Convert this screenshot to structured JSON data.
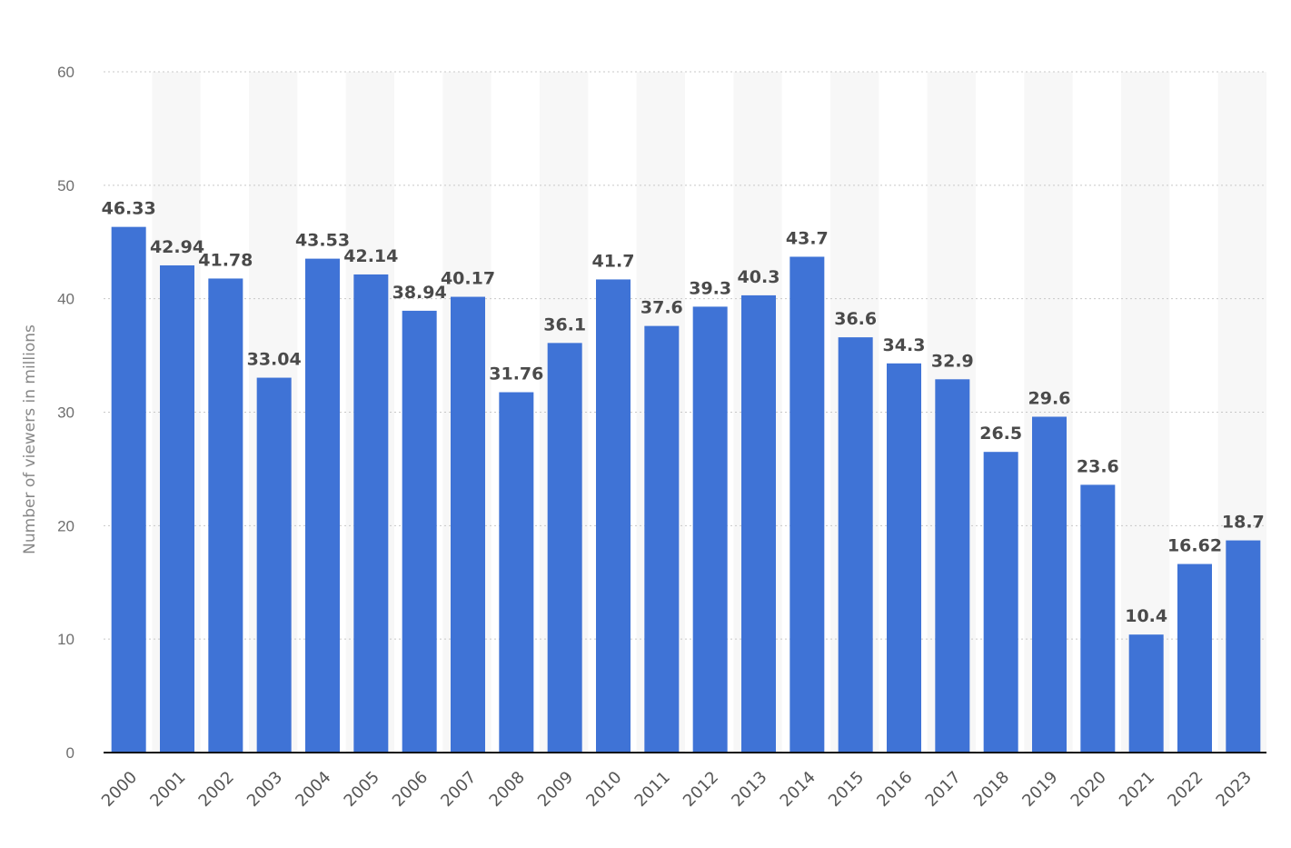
{
  "chart_data": {
    "type": "bar",
    "title": "",
    "xlabel": "",
    "ylabel": "Number of viewers in millions",
    "ylim": [
      0,
      60
    ],
    "yticks": [
      0,
      10,
      20,
      30,
      40,
      50,
      60
    ],
    "grid": true,
    "legend": "none",
    "bar_color": "#3f73d6",
    "categories": [
      "2000",
      "2001",
      "2002",
      "2003",
      "2004",
      "2005",
      "2006",
      "2007",
      "2008",
      "2009",
      "2010",
      "2011",
      "2012",
      "2013",
      "2014",
      "2015",
      "2016",
      "2017",
      "2018",
      "2019",
      "2020",
      "2021",
      "2022",
      "2023"
    ],
    "values": [
      46.33,
      42.94,
      41.78,
      33.04,
      43.53,
      42.14,
      38.94,
      40.17,
      31.76,
      36.1,
      41.7,
      37.6,
      39.3,
      40.3,
      43.7,
      36.6,
      34.3,
      32.9,
      26.5,
      29.6,
      23.6,
      10.4,
      16.62,
      18.7
    ],
    "data_labels": [
      "46.33",
      "42.94",
      "41.78",
      "33.04",
      "43.53",
      "42.14",
      "38.94",
      "40.17",
      "31.76",
      "36.1",
      "41.7",
      "37.6",
      "39.3",
      "40.3",
      "43.7",
      "36.6",
      "34.3",
      "32.9",
      "26.5",
      "29.6",
      "23.6",
      "10.4",
      "16.62",
      "18.7"
    ]
  }
}
